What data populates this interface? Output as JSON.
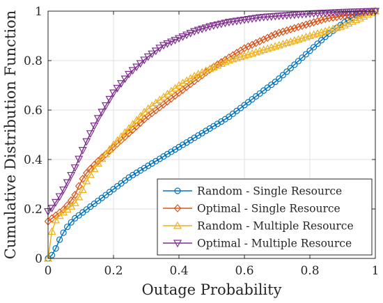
{
  "chart_data": {
    "type": "line",
    "xlabel": "Outage Probability",
    "ylabel": "Cumulative Distribution Function",
    "xlim": [
      0,
      1
    ],
    "ylim": [
      0,
      1
    ],
    "xticks": [
      "0",
      "0.2",
      "0.4",
      "0.6",
      "0.8",
      "1"
    ],
    "yticks": [
      "0",
      "0.2",
      "0.4",
      "0.6",
      "0.8",
      "1"
    ],
    "grid": true,
    "legend_position": "bottom-right",
    "series": [
      {
        "name": "Random - Single Resource",
        "color": "#0072BD",
        "marker": "circle",
        "x": [
          0,
          0.01,
          0.02,
          0.03,
          0.04,
          0.05,
          0.06,
          0.08,
          0.1,
          0.12,
          0.15,
          0.2,
          0.25,
          0.3,
          0.35,
          0.4,
          0.45,
          0.5,
          0.55,
          0.6,
          0.65,
          0.7,
          0.75,
          0.8,
          0.85,
          0.9,
          0.95,
          1.0
        ],
        "y": [
          0,
          0.01,
          0.03,
          0.06,
          0.09,
          0.11,
          0.13,
          0.16,
          0.18,
          0.2,
          0.23,
          0.28,
          0.33,
          0.37,
          0.41,
          0.45,
          0.49,
          0.53,
          0.57,
          0.62,
          0.67,
          0.72,
          0.78,
          0.84,
          0.9,
          0.95,
          0.99,
          1.0
        ]
      },
      {
        "name": "Optimal - Single Resource",
        "color": "#D95319",
        "marker": "diamond",
        "x": [
          0,
          0.02,
          0.05,
          0.08,
          0.1,
          0.12,
          0.15,
          0.2,
          0.25,
          0.3,
          0.35,
          0.4,
          0.45,
          0.5,
          0.55,
          0.6,
          0.65,
          0.7,
          0.75,
          0.8,
          0.85,
          0.9,
          0.95,
          1.0
        ],
        "y": [
          0.15,
          0.17,
          0.2,
          0.25,
          0.31,
          0.35,
          0.39,
          0.45,
          0.51,
          0.57,
          0.62,
          0.67,
          0.72,
          0.77,
          0.81,
          0.85,
          0.88,
          0.91,
          0.93,
          0.95,
          0.97,
          0.98,
          0.99,
          1.0
        ]
      },
      {
        "name": "Random - Multiple Resource",
        "color": "#EDB120",
        "marker": "triangle-up",
        "x": [
          0,
          0.01,
          0.02,
          0.04,
          0.06,
          0.08,
          0.1,
          0.12,
          0.15,
          0.2,
          0.25,
          0.3,
          0.35,
          0.4,
          0.45,
          0.5,
          0.55,
          0.6,
          0.65,
          0.7,
          0.75,
          0.8,
          0.85,
          0.9,
          0.95,
          1.0
        ],
        "y": [
          0,
          0.1,
          0.15,
          0.18,
          0.2,
          0.22,
          0.26,
          0.32,
          0.38,
          0.46,
          0.53,
          0.6,
          0.65,
          0.7,
          0.74,
          0.77,
          0.8,
          0.82,
          0.84,
          0.86,
          0.88,
          0.9,
          0.92,
          0.94,
          0.97,
          1.0
        ]
      },
      {
        "name": "Optimal - Multiple Resource",
        "color": "#7E2F8E",
        "marker": "triangle-down",
        "x": [
          0,
          0.01,
          0.02,
          0.04,
          0.06,
          0.08,
          0.1,
          0.12,
          0.15,
          0.2,
          0.25,
          0.3,
          0.35,
          0.4,
          0.45,
          0.5,
          0.55,
          0.6,
          0.65,
          0.7,
          0.75,
          0.8,
          0.85,
          0.9,
          0.95,
          1.0
        ],
        "y": [
          0.19,
          0.2,
          0.22,
          0.26,
          0.31,
          0.36,
          0.42,
          0.48,
          0.56,
          0.67,
          0.75,
          0.81,
          0.86,
          0.89,
          0.92,
          0.94,
          0.955,
          0.965,
          0.975,
          0.98,
          0.985,
          0.99,
          0.993,
          0.996,
          0.998,
          1.0
        ]
      }
    ]
  }
}
